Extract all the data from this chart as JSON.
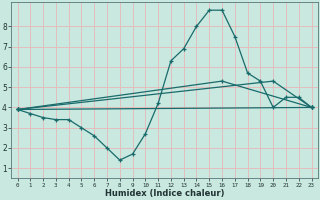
{
  "xlabel": "Humidex (Indice chaleur)",
  "bg_color": "#c8e8e0",
  "grid_color_major": "#e8b8b8",
  "line_color": "#1a6b6b",
  "xlim": [
    -0.5,
    23.5
  ],
  "ylim": [
    0.5,
    9.2
  ],
  "xticks": [
    0,
    1,
    2,
    3,
    4,
    5,
    6,
    7,
    8,
    9,
    10,
    11,
    12,
    13,
    14,
    15,
    16,
    17,
    18,
    19,
    20,
    21,
    22,
    23
  ],
  "yticks": [
    1,
    2,
    3,
    4,
    5,
    6,
    7,
    8
  ],
  "line1_x": [
    0,
    1,
    2,
    3,
    4,
    5,
    6,
    7,
    8,
    9,
    10,
    11,
    12,
    13,
    14,
    15,
    16,
    17,
    18,
    19,
    20,
    21,
    22,
    23
  ],
  "line1_y": [
    3.9,
    3.7,
    3.5,
    3.4,
    3.4,
    3.0,
    2.6,
    2.0,
    1.4,
    1.7,
    2.7,
    4.2,
    6.3,
    6.9,
    8.0,
    8.8,
    8.8,
    7.5,
    5.7,
    5.3,
    4.0,
    4.5,
    4.5,
    4.0
  ],
  "line2_x": [
    0,
    23
  ],
  "line2_y": [
    3.9,
    4.0
  ],
  "line3_x": [
    0,
    16,
    23
  ],
  "line3_y": [
    3.9,
    5.3,
    4.0
  ],
  "line4_x": [
    0,
    20,
    23
  ],
  "line4_y": [
    3.9,
    5.3,
    4.0
  ]
}
